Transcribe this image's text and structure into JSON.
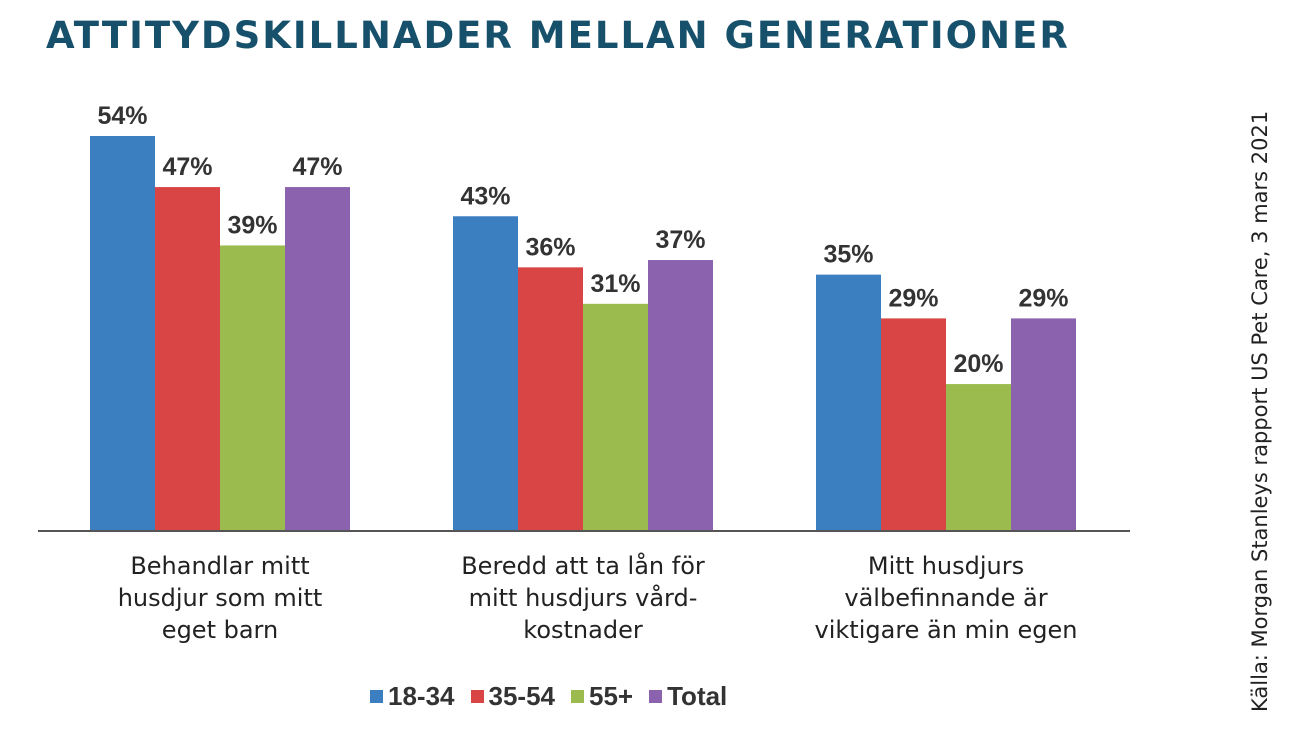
{
  "title": "ATTITYDSKILLNADER MELLAN GENERATIONER",
  "source": "Källa: Morgan Stanleys rapport US Pet Care, 3 mars 2021",
  "chart_data": {
    "type": "bar",
    "categories": [
      [
        "Behandlar mitt",
        "husdjur som mitt",
        "eget barn"
      ],
      [
        "Beredd att ta lån för",
        "mitt husdjurs vård-",
        "kostnader"
      ],
      [
        "Mitt husdjurs",
        "välbefinnande är",
        "viktigare än min egen"
      ]
    ],
    "series": [
      {
        "name": "18-34",
        "color": "#3b7fc1",
        "values": [
          54,
          43,
          35
        ],
        "labels": [
          "54%",
          "43%",
          "35%"
        ]
      },
      {
        "name": "35-54",
        "color": "#d94545",
        "values": [
          47,
          36,
          29
        ],
        "labels": [
          "47%",
          "36%",
          "29%"
        ]
      },
      {
        "name": "55+",
        "color": "#9bbb4e",
        "values": [
          39,
          31,
          20
        ],
        "labels": [
          "39%",
          "31%",
          "20%"
        ]
      },
      {
        "name": "Total",
        "color": "#8a62ae",
        "values": [
          47,
          37,
          29
        ],
        "labels": [
          "47%",
          "37%",
          "29%"
        ]
      }
    ],
    "ylim": [
      0,
      54
    ],
    "grid": false,
    "legend_position": "bottom"
  }
}
